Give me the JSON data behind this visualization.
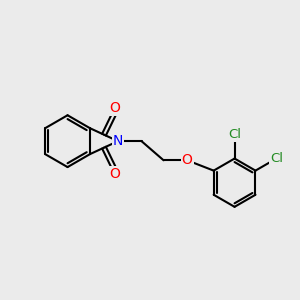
{
  "bg_color": "#ebebeb",
  "bond_color": "#000000",
  "bond_width": 1.5,
  "atom_colors": {
    "O": "#ff0000",
    "N": "#0000ff",
    "Cl": "#228B22",
    "C": "#000000"
  },
  "font_size": 9.5,
  "fig_width": 3.0,
  "fig_height": 3.0
}
